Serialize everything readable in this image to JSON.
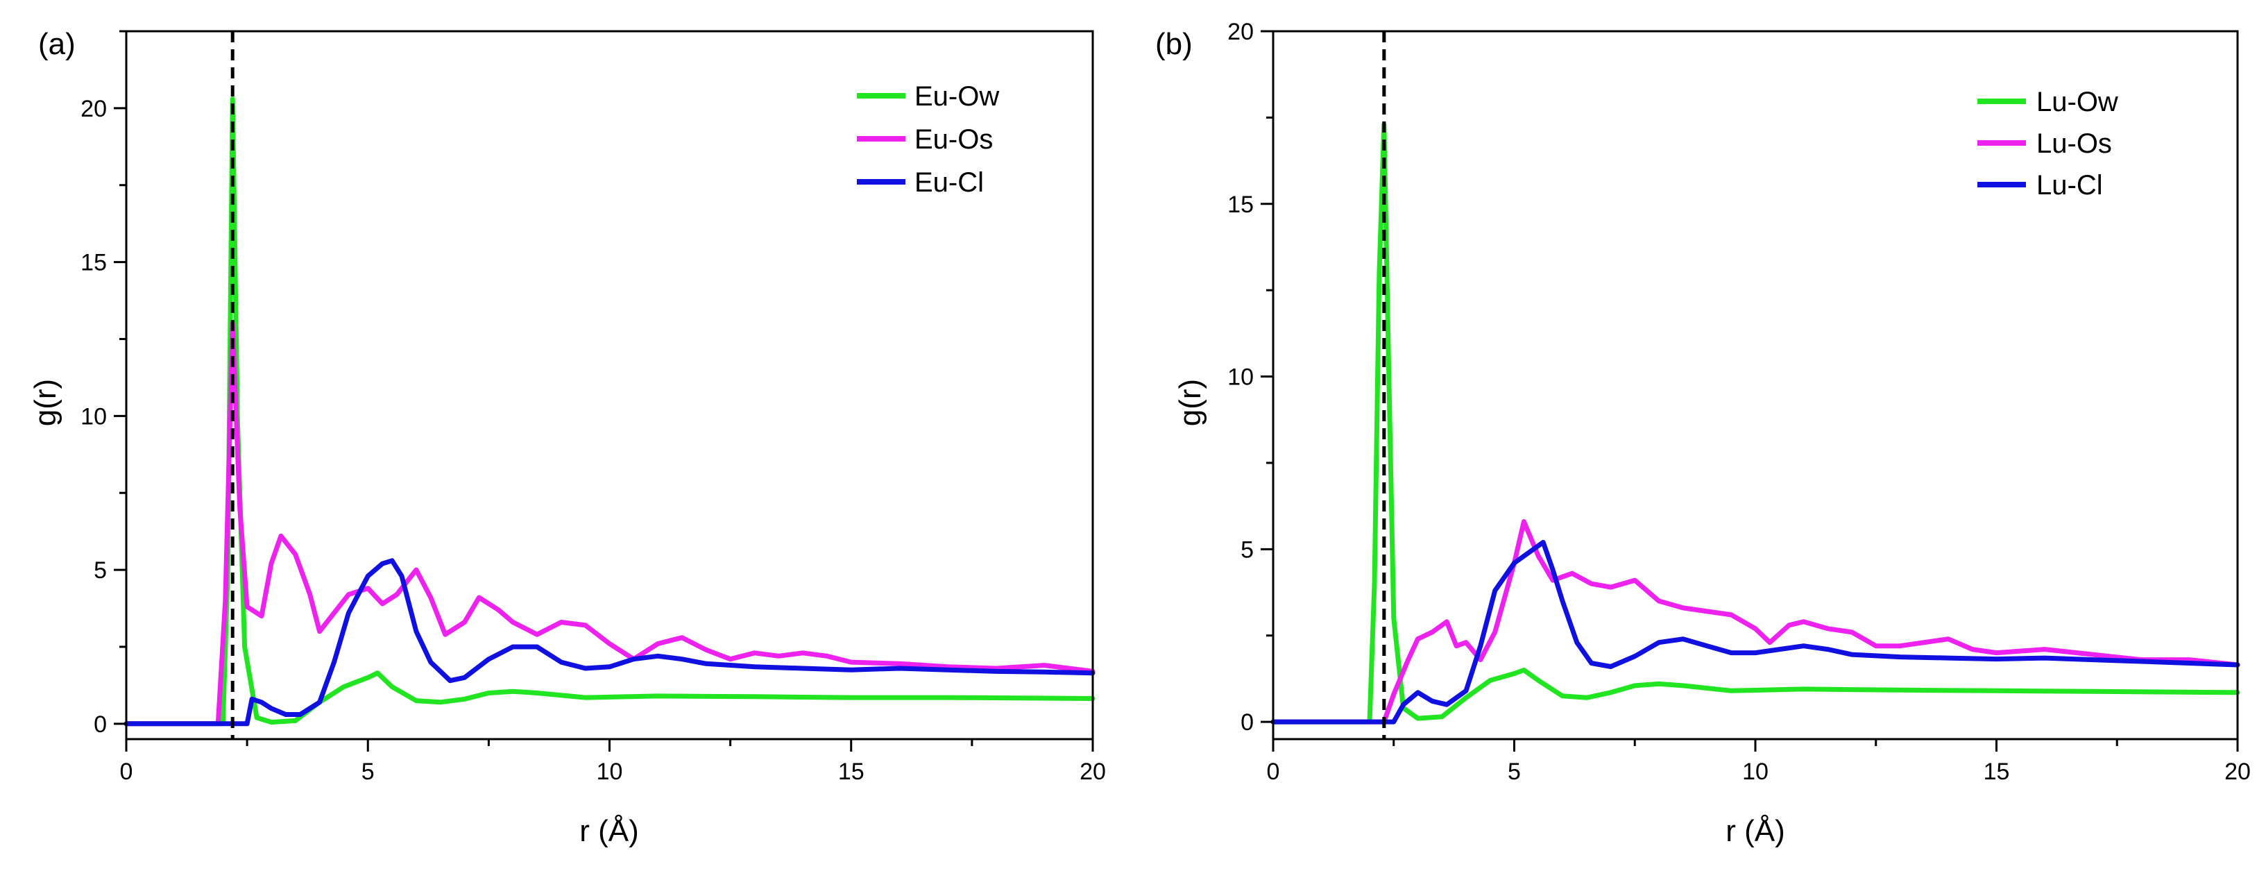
{
  "chart_data": [
    {
      "type": "line",
      "panel_label": "(a)",
      "xlabel": "r (Å)",
      "ylabel": "g(r)",
      "xlim": [
        0,
        20
      ],
      "ylim": [
        -0.5,
        22.5
      ],
      "xticks": [
        0,
        5,
        10,
        15,
        20
      ],
      "xtick_labels": [
        "0",
        "5",
        "10",
        "15",
        "20"
      ],
      "yticks": [
        0,
        5,
        10,
        15,
        20
      ],
      "ytick_labels": [
        "0",
        "5",
        "10",
        "15",
        "20"
      ],
      "legend_position": "top-right",
      "reference_line": {
        "x": 2.2,
        "style": "dashed",
        "color": "#000000"
      },
      "series": [
        {
          "name": "Eu-Ow",
          "color": "#22e522",
          "points": [
            [
              0,
              0
            ],
            [
              2.0,
              0
            ],
            [
              2.1,
              5
            ],
            [
              2.2,
              20.3
            ],
            [
              2.3,
              10
            ],
            [
              2.45,
              2.5
            ],
            [
              2.7,
              0.2
            ],
            [
              3.0,
              0.05
            ],
            [
              3.5,
              0.1
            ],
            [
              4.0,
              0.7
            ],
            [
              4.5,
              1.2
            ],
            [
              5.0,
              1.5
            ],
            [
              5.2,
              1.65
            ],
            [
              5.5,
              1.2
            ],
            [
              6.0,
              0.75
            ],
            [
              6.5,
              0.7
            ],
            [
              7.0,
              0.8
            ],
            [
              7.5,
              1.0
            ],
            [
              8.0,
              1.05
            ],
            [
              8.5,
              1.0
            ],
            [
              9.5,
              0.85
            ],
            [
              11,
              0.9
            ],
            [
              13,
              0.88
            ],
            [
              15,
              0.85
            ],
            [
              17,
              0.85
            ],
            [
              20,
              0.82
            ]
          ]
        },
        {
          "name": "Eu-Os",
          "color": "#ee22ee",
          "points": [
            [
              0,
              0
            ],
            [
              1.9,
              0
            ],
            [
              2.05,
              4
            ],
            [
              2.2,
              13
            ],
            [
              2.35,
              7
            ],
            [
              2.5,
              3.8
            ],
            [
              2.8,
              3.5
            ],
            [
              3.0,
              5.2
            ],
            [
              3.2,
              6.1
            ],
            [
              3.5,
              5.5
            ],
            [
              3.8,
              4.2
            ],
            [
              4.0,
              3.0
            ],
            [
              4.3,
              3.6
            ],
            [
              4.6,
              4.2
            ],
            [
              5.0,
              4.4
            ],
            [
              5.3,
              3.9
            ],
            [
              5.6,
              4.2
            ],
            [
              6.0,
              5.0
            ],
            [
              6.3,
              4.1
            ],
            [
              6.6,
              2.9
            ],
            [
              7.0,
              3.3
            ],
            [
              7.3,
              4.1
            ],
            [
              7.7,
              3.7
            ],
            [
              8.0,
              3.3
            ],
            [
              8.5,
              2.9
            ],
            [
              9.0,
              3.3
            ],
            [
              9.5,
              3.2
            ],
            [
              10.0,
              2.6
            ],
            [
              10.5,
              2.1
            ],
            [
              11.0,
              2.6
            ],
            [
              11.5,
              2.8
            ],
            [
              12.0,
              2.4
            ],
            [
              12.5,
              2.1
            ],
            [
              13.0,
              2.3
            ],
            [
              13.5,
              2.2
            ],
            [
              14.0,
              2.3
            ],
            [
              14.5,
              2.2
            ],
            [
              15.0,
              2.0
            ],
            [
              16.0,
              1.95
            ],
            [
              17.0,
              1.85
            ],
            [
              18.0,
              1.8
            ],
            [
              19.0,
              1.9
            ],
            [
              20.0,
              1.7
            ]
          ]
        },
        {
          "name": "Eu-Cl",
          "color": "#1010e0",
          "points": [
            [
              0,
              0
            ],
            [
              2.5,
              0
            ],
            [
              2.6,
              0.8
            ],
            [
              2.8,
              0.7
            ],
            [
              3.0,
              0.5
            ],
            [
              3.3,
              0.3
            ],
            [
              3.6,
              0.3
            ],
            [
              4.0,
              0.7
            ],
            [
              4.3,
              2.0
            ],
            [
              4.6,
              3.6
            ],
            [
              5.0,
              4.8
            ],
            [
              5.3,
              5.2
            ],
            [
              5.5,
              5.3
            ],
            [
              5.7,
              4.8
            ],
            [
              6.0,
              3.0
            ],
            [
              6.3,
              2.0
            ],
            [
              6.7,
              1.4
            ],
            [
              7.0,
              1.5
            ],
            [
              7.5,
              2.1
            ],
            [
              8.0,
              2.5
            ],
            [
              8.5,
              2.5
            ],
            [
              9.0,
              2.0
            ],
            [
              9.5,
              1.8
            ],
            [
              10.0,
              1.85
            ],
            [
              10.5,
              2.1
            ],
            [
              11.0,
              2.2
            ],
            [
              11.5,
              2.1
            ],
            [
              12.0,
              1.95
            ],
            [
              13.0,
              1.85
            ],
            [
              14.0,
              1.8
            ],
            [
              15.0,
              1.75
            ],
            [
              16.0,
              1.8
            ],
            [
              17.0,
              1.75
            ],
            [
              18.0,
              1.7
            ],
            [
              19.0,
              1.68
            ],
            [
              20.0,
              1.65
            ]
          ]
        }
      ]
    },
    {
      "type": "line",
      "panel_label": "(b)",
      "xlabel": "r (Å)",
      "ylabel": "g(r)",
      "xlim": [
        0,
        20
      ],
      "ylim": [
        -0.5,
        20
      ],
      "xticks": [
        0,
        5,
        10,
        15,
        20
      ],
      "xtick_labels": [
        "0",
        "5",
        "10",
        "15",
        "20"
      ],
      "yticks": [
        0,
        5,
        10,
        15,
        20
      ],
      "ytick_labels": [
        "0",
        "5",
        "10",
        "15",
        "20"
      ],
      "legend_position": "top-right",
      "reference_line": {
        "x": 2.3,
        "style": "dashed",
        "color": "#000000"
      },
      "series": [
        {
          "name": "Lu-Ow",
          "color": "#22e522",
          "points": [
            [
              0,
              0
            ],
            [
              2.0,
              0
            ],
            [
              2.1,
              4
            ],
            [
              2.2,
              13
            ],
            [
              2.3,
              17.3
            ],
            [
              2.4,
              10
            ],
            [
              2.5,
              3
            ],
            [
              2.7,
              0.4
            ],
            [
              3.0,
              0.1
            ],
            [
              3.5,
              0.15
            ],
            [
              4.0,
              0.7
            ],
            [
              4.5,
              1.2
            ],
            [
              5.0,
              1.4
            ],
            [
              5.2,
              1.5
            ],
            [
              5.5,
              1.2
            ],
            [
              6.0,
              0.75
            ],
            [
              6.5,
              0.7
            ],
            [
              7.0,
              0.85
            ],
            [
              7.5,
              1.05
            ],
            [
              8.0,
              1.1
            ],
            [
              8.5,
              1.05
            ],
            [
              9.5,
              0.9
            ],
            [
              11.0,
              0.95
            ],
            [
              13.0,
              0.92
            ],
            [
              15.0,
              0.9
            ],
            [
              17.0,
              0.88
            ],
            [
              20.0,
              0.85
            ]
          ]
        },
        {
          "name": "Lu-Os",
          "color": "#ee22ee",
          "points": [
            [
              0,
              0
            ],
            [
              2.3,
              0
            ],
            [
              2.5,
              0.8
            ],
            [
              2.8,
              1.8
            ],
            [
              3.0,
              2.4
            ],
            [
              3.3,
              2.6
            ],
            [
              3.6,
              2.9
            ],
            [
              3.8,
              2.2
            ],
            [
              4.0,
              2.3
            ],
            [
              4.3,
              1.8
            ],
            [
              4.6,
              2.6
            ],
            [
              5.0,
              4.6
            ],
            [
              5.2,
              5.8
            ],
            [
              5.5,
              4.8
            ],
            [
              5.8,
              4.1
            ],
            [
              6.2,
              4.3
            ],
            [
              6.6,
              4.0
            ],
            [
              7.0,
              3.9
            ],
            [
              7.5,
              4.1
            ],
            [
              8.0,
              3.5
            ],
            [
              8.5,
              3.3
            ],
            [
              9.0,
              3.2
            ],
            [
              9.5,
              3.1
            ],
            [
              10.0,
              2.7
            ],
            [
              10.3,
              2.3
            ],
            [
              10.7,
              2.8
            ],
            [
              11.0,
              2.9
            ],
            [
              11.5,
              2.7
            ],
            [
              12.0,
              2.6
            ],
            [
              12.5,
              2.2
            ],
            [
              13.0,
              2.2
            ],
            [
              14.0,
              2.4
            ],
            [
              14.5,
              2.1
            ],
            [
              15.0,
              2.0
            ],
            [
              16.0,
              2.1
            ],
            [
              17.0,
              1.95
            ],
            [
              18.0,
              1.8
            ],
            [
              19.0,
              1.8
            ],
            [
              20.0,
              1.65
            ]
          ]
        },
        {
          "name": "Lu-Cl",
          "color": "#1010e0",
          "points": [
            [
              0,
              0
            ],
            [
              2.5,
              0
            ],
            [
              2.7,
              0.5
            ],
            [
              3.0,
              0.85
            ],
            [
              3.3,
              0.6
            ],
            [
              3.6,
              0.5
            ],
            [
              4.0,
              0.9
            ],
            [
              4.3,
              2.2
            ],
            [
              4.6,
              3.8
            ],
            [
              5.0,
              4.6
            ],
            [
              5.3,
              4.9
            ],
            [
              5.6,
              5.2
            ],
            [
              5.8,
              4.4
            ],
            [
              6.0,
              3.5
            ],
            [
              6.3,
              2.3
            ],
            [
              6.6,
              1.7
            ],
            [
              7.0,
              1.6
            ],
            [
              7.5,
              1.9
            ],
            [
              8.0,
              2.3
            ],
            [
              8.5,
              2.4
            ],
            [
              9.0,
              2.2
            ],
            [
              9.5,
              2.0
            ],
            [
              10.0,
              2.0
            ],
            [
              10.5,
              2.1
            ],
            [
              11.0,
              2.2
            ],
            [
              11.5,
              2.1
            ],
            [
              12.0,
              1.95
            ],
            [
              13.0,
              1.88
            ],
            [
              14.0,
              1.85
            ],
            [
              15.0,
              1.82
            ],
            [
              16.0,
              1.85
            ],
            [
              17.0,
              1.8
            ],
            [
              18.0,
              1.75
            ],
            [
              19.0,
              1.7
            ],
            [
              20.0,
              1.65
            ]
          ]
        }
      ]
    }
  ]
}
